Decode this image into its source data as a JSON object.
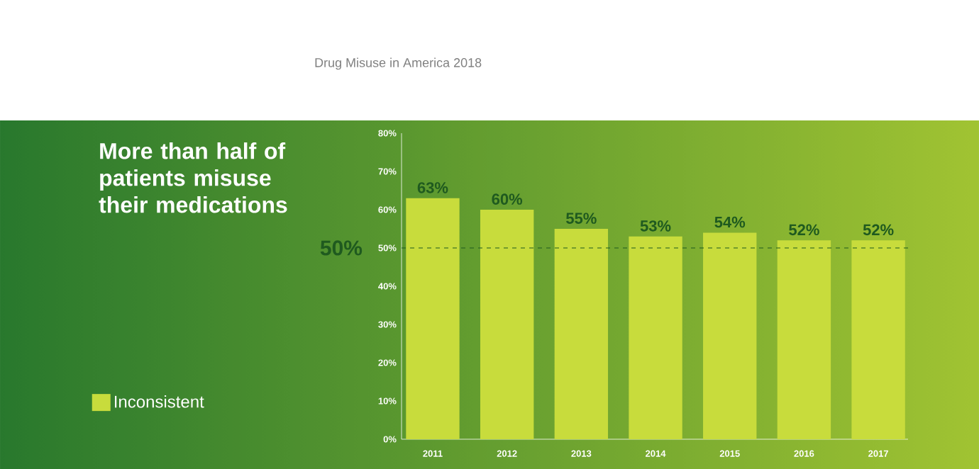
{
  "chart_data": {
    "type": "bar",
    "title": "More than half of patients misuse their medications",
    "subtitle": "Drug Misuse in America 2018",
    "categories": [
      "2011",
      "2012",
      "2013",
      "2014",
      "2015",
      "2016",
      "2017"
    ],
    "series": [
      {
        "name": "Inconsistent",
        "color": "#c8dc3c",
        "values": [
          63,
          60,
          55,
          53,
          54,
          52,
          52
        ],
        "value_labels": [
          "63%",
          "60%",
          "55%",
          "53%",
          "54%",
          "52%",
          "52%"
        ]
      }
    ],
    "ylim": [
      0,
      80
    ],
    "yticks": [
      {
        "value": 0,
        "label": "0%"
      },
      {
        "value": 10,
        "label": "10%"
      },
      {
        "value": 20,
        "label": "20%"
      },
      {
        "value": 30,
        "label": "30%"
      },
      {
        "value": 40,
        "label": "40%"
      },
      {
        "value": 50,
        "label": "50%"
      },
      {
        "value": 60,
        "label": "60%"
      },
      {
        "value": 70,
        "label": "70%"
      },
      {
        "value": 80,
        "label": "80%"
      }
    ],
    "ref_lines": [
      {
        "axis": "y",
        "value": 50,
        "label": "50%",
        "color": "#1f5a1f",
        "line_style": "dashed"
      }
    ],
    "legend": "bottom left",
    "grid": false
  }
}
